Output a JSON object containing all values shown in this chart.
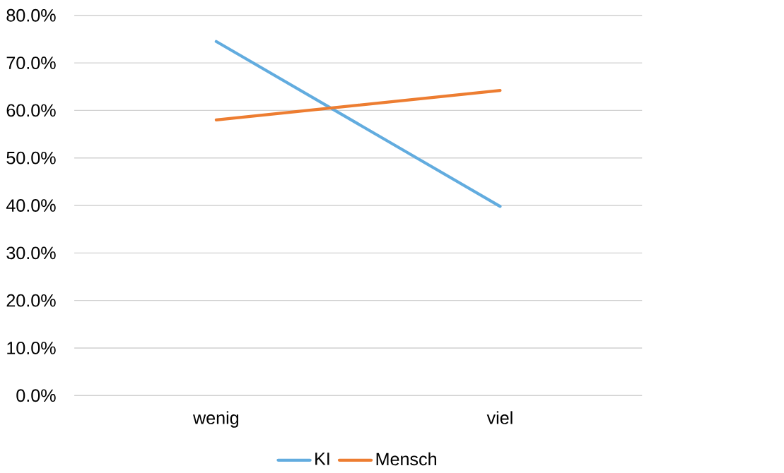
{
  "chart_data": {
    "type": "line",
    "categories": [
      "wenig",
      "viel"
    ],
    "series": [
      {
        "name": "KI",
        "color": "#62acdf",
        "values": [
          74.5,
          39.8
        ]
      },
      {
        "name": "Mensch",
        "color": "#ed7d31",
        "values": [
          58.0,
          64.2
        ]
      }
    ],
    "ylim": [
      0,
      80
    ],
    "yticks": [
      {
        "value": 0,
        "label": "0.0%"
      },
      {
        "value": 10,
        "label": "10.0%"
      },
      {
        "value": 20,
        "label": "20.0%"
      },
      {
        "value": 30,
        "label": "30.0%"
      },
      {
        "value": 40,
        "label": "40.0%"
      },
      {
        "value": 50,
        "label": "50.0%"
      },
      {
        "value": 60,
        "label": "60.0%"
      },
      {
        "value": 70,
        "label": "70.0%"
      },
      {
        "value": 80,
        "label": "80.0%"
      }
    ],
    "grid": "y",
    "legend": "bottom",
    "marker": "none",
    "line_style": "solid"
  }
}
